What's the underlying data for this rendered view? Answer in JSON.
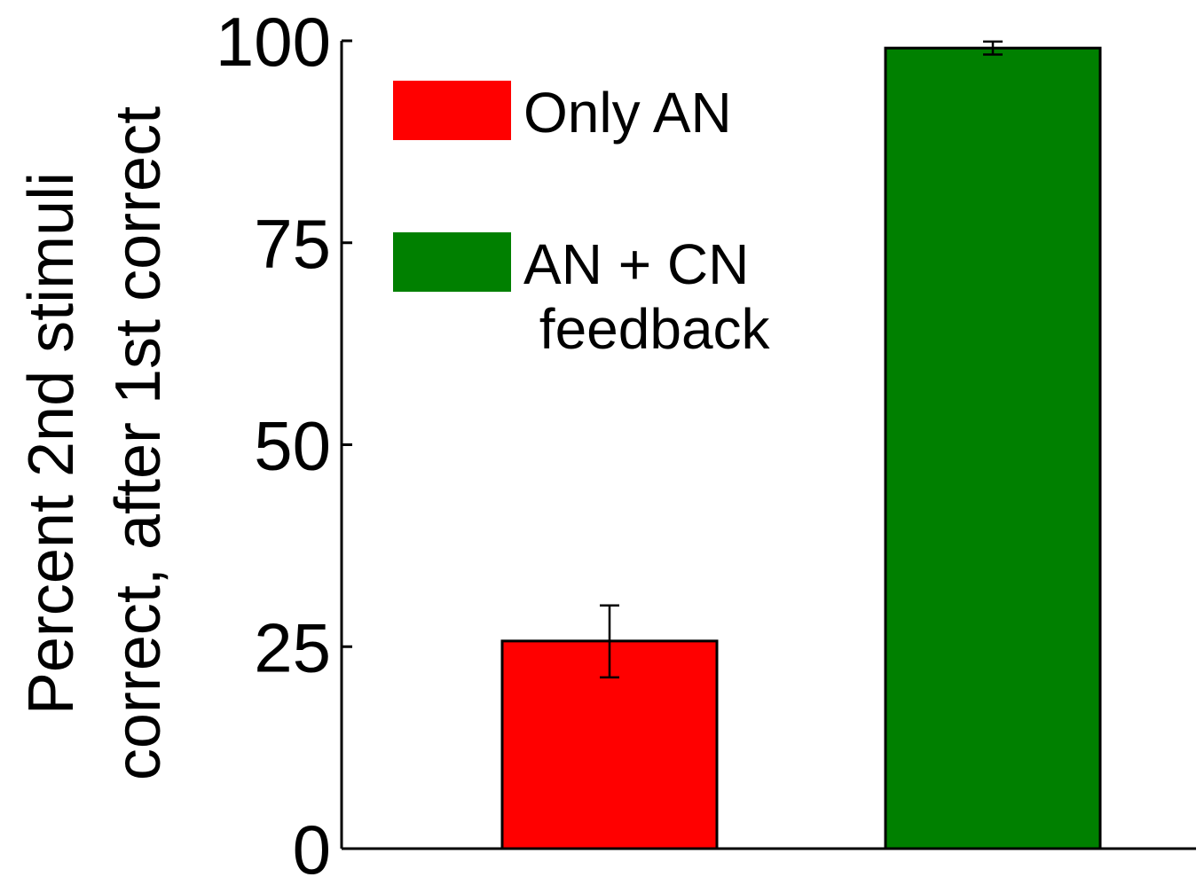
{
  "chart_data": {
    "type": "bar",
    "ylabel": [
      "Percent 2nd stimuli",
      "correct, after 1st correct"
    ],
    "xlabel": "",
    "title": "",
    "ylim": [
      0,
      100
    ],
    "yticks": [
      0,
      25,
      50,
      75,
      100
    ],
    "categories": [
      "Only AN",
      "AN + CN feedback"
    ],
    "series": [
      {
        "name": "Only AN",
        "legend_lines": [
          "Only AN"
        ],
        "value": 25.7,
        "error_low": 21.2,
        "error_high": 30.1,
        "color": "#ff0000"
      },
      {
        "name": "AN + CN feedback",
        "legend_lines": [
          "AN + CN",
          " feedback"
        ],
        "value": 99.1,
        "error_low": 98.3,
        "error_high": 99.9,
        "color": "#008000"
      }
    ],
    "legend_position": "top-left",
    "grid": false
  }
}
